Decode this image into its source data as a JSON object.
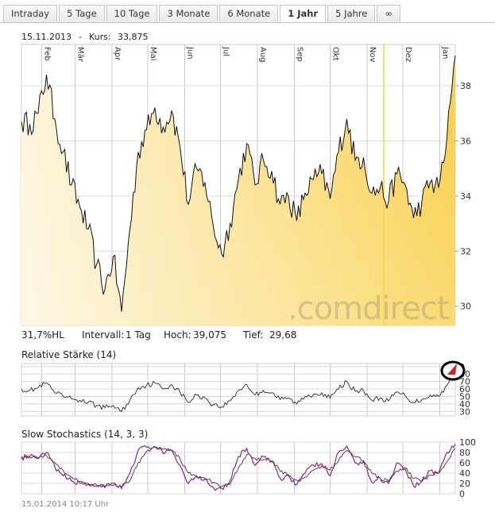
{
  "tabs": [
    {
      "label": "Intraday",
      "active": false
    },
    {
      "label": "5 Tage",
      "active": false
    },
    {
      "label": "10 Tage",
      "active": false
    },
    {
      "label": "3 Monate",
      "active": false
    },
    {
      "label": "6 Monate",
      "active": false
    },
    {
      "label": "1 Jahr",
      "active": true
    },
    {
      "label": "5 Jahre",
      "active": false
    },
    {
      "label": "∞",
      "active": false
    }
  ],
  "header": {
    "date": "15.11.2013",
    "separator": "-",
    "kurs_label": "Kurs:",
    "kurs_value": "33,875"
  },
  "stats": {
    "hl": "31,7%HL",
    "interval_label": "Intervall:",
    "interval_value": "1 Tag",
    "high_label": "Hoch:",
    "high_value": "39,075",
    "low_label": "Tief:",
    "low_value": "29,68"
  },
  "watermark": ".comdirect",
  "footer_timestamp": "15.01.2014 10:17 Uhr",
  "colors": {
    "line": "#111111",
    "fill_light": "#fdf5dc",
    "fill_dark": "#f9cf45",
    "cursor": "#f7d33a",
    "stoch_k": "#8b2a6e",
    "stoch_d": "#222222",
    "rsi_high": "#c0392b",
    "rsi_low": "#2e8b3a"
  },
  "chart_data": [
    {
      "type": "area",
      "title": "",
      "months": [
        "Feb",
        "Mär",
        "Apr",
        "Mai",
        "Jun",
        "Jul",
        "Aug",
        "Sep",
        "Okt",
        "Nov",
        "Dez",
        "Jan"
      ],
      "ylim": [
        29.3,
        39.5
      ],
      "yticks": [
        30,
        32,
        34,
        36,
        38
      ],
      "highlight_date": "15.11.2013",
      "x": [
        "2013-01-15",
        "2013-01-22",
        "2013-01-29",
        "2013-02-05",
        "2013-02-12",
        "2013-02-19",
        "2013-02-26",
        "2013-03-05",
        "2013-03-12",
        "2013-03-19",
        "2013-03-26",
        "2013-04-02",
        "2013-04-09",
        "2013-04-16",
        "2013-04-23",
        "2013-04-30",
        "2013-05-07",
        "2013-05-14",
        "2013-05-21",
        "2013-05-28",
        "2013-06-04",
        "2013-06-11",
        "2013-06-18",
        "2013-06-25",
        "2013-07-02",
        "2013-07-09",
        "2013-07-16",
        "2013-07-23",
        "2013-07-30",
        "2013-08-06",
        "2013-08-13",
        "2013-08-20",
        "2013-08-27",
        "2013-09-03",
        "2013-09-10",
        "2013-09-17",
        "2013-09-24",
        "2013-10-01",
        "2013-10-08",
        "2013-10-15",
        "2013-10-22",
        "2013-10-29",
        "2013-11-05",
        "2013-11-12",
        "2013-11-19",
        "2013-11-26",
        "2013-12-03",
        "2013-12-10",
        "2013-12-17",
        "2013-12-24",
        "2013-12-31",
        "2014-01-07",
        "2014-01-14"
      ],
      "series": [
        {
          "values": [
            36.7,
            36.6,
            37.0,
            38.4,
            36.8,
            35.6,
            34.4,
            33.6,
            32.8,
            31.5,
            30.6,
            31.8,
            29.8,
            32.8,
            35.6,
            36.4,
            37.2,
            36.5,
            37.1,
            35.8,
            33.7,
            35.0,
            34.5,
            32.9,
            31.9,
            33.0,
            34.6,
            35.9,
            34.4,
            35.3,
            34.9,
            33.7,
            34.0,
            33.1,
            34.1,
            34.6,
            34.8,
            33.9,
            35.6,
            36.8,
            35.3,
            35.4,
            34.1,
            34.3,
            33.8,
            34.8,
            34.4,
            33.2,
            33.8,
            34.5,
            34.3,
            36.1,
            39.1
          ]
        }
      ]
    },
    {
      "type": "line",
      "title": "Relative Stärke (14)",
      "ylim": [
        24,
        94
      ],
      "yticks": [
        30,
        40,
        50,
        60,
        70,
        80,
        90
      ],
      "tick_labels": [
        "30",
        "40",
        "50",
        "60",
        "70",
        "80",
        "0"
      ],
      "series": [
        {
          "values": [
            60,
            58,
            62,
            68,
            55,
            50,
            47,
            45,
            42,
            38,
            35,
            38,
            30,
            45,
            62,
            65,
            68,
            60,
            66,
            56,
            42,
            52,
            48,
            39,
            36,
            44,
            58,
            66,
            52,
            58,
            55,
            46,
            48,
            40,
            50,
            53,
            55,
            48,
            60,
            70,
            57,
            58,
            45,
            48,
            44,
            56,
            51,
            42,
            46,
            52,
            50,
            65,
            85
          ]
        }
      ]
    },
    {
      "type": "line",
      "title": "Slow Stochastics (14, 3, 3)",
      "ylim": [
        0,
        100
      ],
      "yticks": [
        0,
        20,
        40,
        60,
        80,
        100
      ],
      "series": [
        {
          "values": [
            70,
            72,
            68,
            80,
            52,
            35,
            25,
            20,
            18,
            15,
            12,
            20,
            10,
            40,
            85,
            90,
            92,
            78,
            85,
            55,
            20,
            35,
            28,
            12,
            10,
            25,
            72,
            88,
            55,
            72,
            62,
            30,
            35,
            18,
            40,
            55,
            58,
            35,
            80,
            92,
            60,
            62,
            22,
            30,
            20,
            60,
            48,
            15,
            25,
            45,
            40,
            80,
            96
          ]
        },
        {
          "values": [
            72,
            71,
            70,
            74,
            60,
            45,
            32,
            24,
            20,
            17,
            14,
            16,
            14,
            25,
            60,
            82,
            90,
            86,
            84,
            68,
            40,
            32,
            30,
            22,
            14,
            18,
            50,
            76,
            68,
            66,
            64,
            44,
            36,
            26,
            32,
            46,
            54,
            46,
            64,
            84,
            72,
            64,
            40,
            30,
            24,
            44,
            50,
            30,
            24,
            36,
            40,
            62,
            88
          ]
        }
      ]
    }
  ]
}
